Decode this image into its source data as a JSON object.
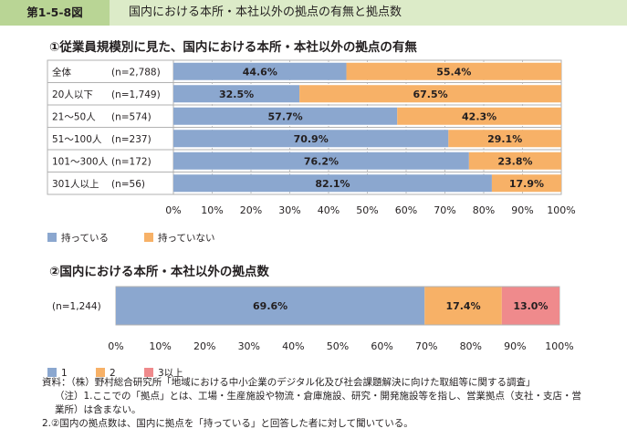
{
  "figure": {
    "number": "第1-5-8図",
    "title": "国内における本所・本社以外の拠点の有無と拠点数"
  },
  "colors": {
    "blue": "#8ba7cf",
    "orange": "#f7b167",
    "pink": "#ef8a8c",
    "grid": "#b2b2b2"
  },
  "chart_data": [
    {
      "type": "bar",
      "orientation": "horizontal",
      "stacked": true,
      "title": "①従業員規模別に見た、国内における本所・本社以外の拠点の有無",
      "categories": [
        "全体",
        "20人以下",
        "21～50人",
        "51～100人",
        "101～300人",
        "301人以上"
      ],
      "n_labels": [
        "(n=2,788)",
        "(n=1,749)",
        "(n=574)",
        "(n=237)",
        "(n=172)",
        "(n=56)"
      ],
      "series": [
        {
          "name": "持っている",
          "values": [
            44.6,
            32.5,
            57.7,
            70.9,
            76.2,
            82.1
          ],
          "labels": [
            "44.6%",
            "32.5%",
            "57.7%",
            "70.9%",
            "76.2%",
            "82.1%"
          ]
        },
        {
          "name": "持っていない",
          "values": [
            55.4,
            67.5,
            42.3,
            29.1,
            23.8,
            17.9
          ],
          "labels": [
            "55.4%",
            "67.5%",
            "42.3%",
            "29.1%",
            "23.8%",
            "17.9%"
          ]
        }
      ],
      "xlim": [
        0,
        100
      ],
      "xticks": [
        "0%",
        "10%",
        "20%",
        "30%",
        "40%",
        "50%",
        "60%",
        "70%",
        "80%",
        "90%",
        "100%"
      ],
      "grid": true,
      "legend": "bottom-left"
    },
    {
      "type": "bar",
      "orientation": "horizontal",
      "stacked": true,
      "title": "②国内における本所・本社以外の拠点数",
      "categories": [
        "(n=1,244)"
      ],
      "series": [
        {
          "name": "1",
          "values": [
            69.6
          ],
          "labels": [
            "69.6%"
          ]
        },
        {
          "name": "2",
          "values": [
            17.4
          ],
          "labels": [
            "17.4%"
          ]
        },
        {
          "name": "3以上",
          "values": [
            13.0
          ],
          "labels": [
            "13.0%"
          ]
        }
      ],
      "xlim": [
        0,
        100
      ],
      "xticks": [
        "0%",
        "10%",
        "20%",
        "30%",
        "40%",
        "50%",
        "60%",
        "70%",
        "80%",
        "90%",
        "100%"
      ],
      "grid": true,
      "legend": "bottom-left"
    }
  ],
  "notes": [
    "資料：（株）野村総合研究所「地域における中小企業のデジタル化及び社会課題解決に向けた取組等に関する調査」",
    "（注）1.ここでの「拠点」とは、工場・生産施設や物流・倉庫施設、研究・開発施設等を指し、営業拠点（支社・支店・営",
    "業所）は含まない。",
    "2.②国内の拠点数は、国内に拠点を「持っている」と回答した者に対して聞いている。"
  ]
}
